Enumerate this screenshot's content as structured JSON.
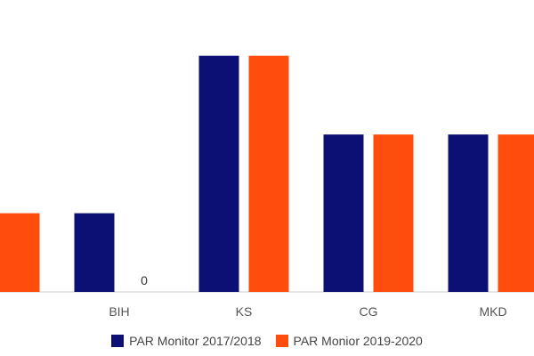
{
  "chart_data": {
    "type": "bar",
    "categories": [
      "",
      "BIH",
      "KS",
      "CG",
      "MKD"
    ],
    "series": [
      {
        "name": "PAR Monitor 2017/2018",
        "values": [
          1,
          1,
          3,
          2,
          2
        ],
        "color": "#0c0f73"
      },
      {
        "name": "PAR Monior 2019-2020",
        "values": [
          1,
          0,
          3,
          2,
          2
        ],
        "color": "#ff4d0d"
      }
    ],
    "data_labels": [
      {
        "category": "BIH",
        "series": 1,
        "text": "0"
      }
    ],
    "title": "",
    "xlabel": "",
    "ylabel": "",
    "ylim": [
      0,
      3.2
    ],
    "grid": false,
    "legend_position": "bottom"
  }
}
